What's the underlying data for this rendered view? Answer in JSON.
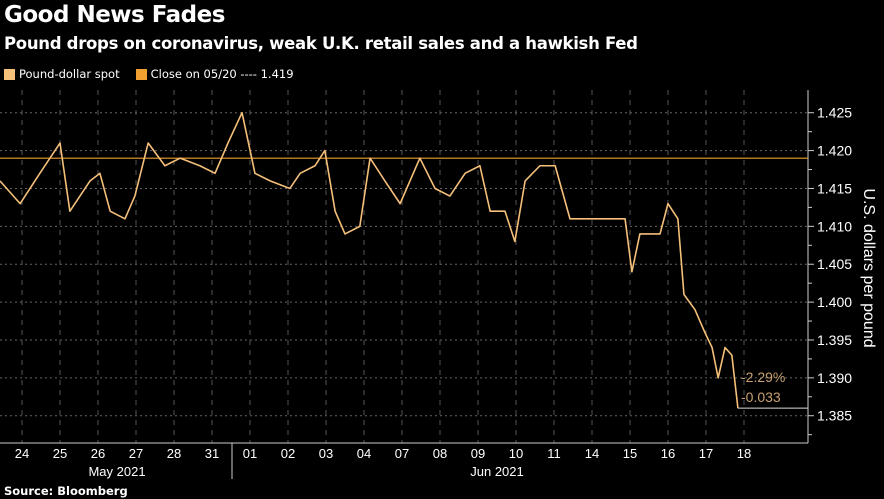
{
  "chart_data": {
    "type": "line",
    "title": "Good News Fades",
    "subtitle": "Pound drops on coronavirus, weak U.K. retail sales and a hawkish Fed",
    "legend": [
      {
        "label": "Pound-dollar spot",
        "color": "#f5c07a"
      },
      {
        "label": "Close on 05/20 ---- 1.419",
        "color": "#f0a030"
      }
    ],
    "ylabel": "U.S. dollars per pound",
    "yticks": [
      "1.425",
      "1.420",
      "1.415",
      "1.410",
      "1.405",
      "1.400",
      "1.395",
      "1.390",
      "1.385"
    ],
    "ylim": [
      1.3814,
      1.428
    ],
    "categories": [
      "24",
      "25",
      "26",
      "27",
      "28",
      "31",
      "01",
      "02",
      "03",
      "04",
      "07",
      "08",
      "09",
      "10",
      "11",
      "14",
      "15",
      "16",
      "17",
      "18"
    ],
    "months": [
      {
        "label": "May 2021",
        "center": 2.5
      },
      {
        "label": "Jun 2021",
        "center": 12.5
      }
    ],
    "reference_value": 1.419,
    "last_value": 1.386,
    "annotations": [
      "-2.29%",
      "-0.033"
    ],
    "series": [
      {
        "name": "Pound-dollar spot",
        "points": [
          [
            -0.58,
            1.416
          ],
          [
            -0.05,
            1.413
          ],
          [
            0.47,
            1.417
          ],
          [
            1.0,
            1.421
          ],
          [
            1.26,
            1.412
          ],
          [
            1.79,
            1.416
          ],
          [
            2.05,
            1.417
          ],
          [
            2.32,
            1.412
          ],
          [
            2.71,
            1.411
          ],
          [
            2.97,
            1.414
          ],
          [
            3.32,
            1.421
          ],
          [
            3.76,
            1.418
          ],
          [
            4.16,
            1.419
          ],
          [
            4.68,
            1.418
          ],
          [
            5.08,
            1.417
          ],
          [
            5.42,
            1.421
          ],
          [
            5.79,
            1.425
          ],
          [
            6.13,
            1.417
          ],
          [
            6.53,
            1.416
          ],
          [
            7.05,
            1.415
          ],
          [
            7.32,
            1.417
          ],
          [
            7.71,
            1.418
          ],
          [
            7.97,
            1.42
          ],
          [
            8.24,
            1.412
          ],
          [
            8.5,
            1.409
          ],
          [
            8.89,
            1.41
          ],
          [
            9.16,
            1.419
          ],
          [
            9.55,
            1.416
          ],
          [
            9.95,
            1.413
          ],
          [
            10.47,
            1.419
          ],
          [
            10.87,
            1.415
          ],
          [
            11.26,
            1.414
          ],
          [
            11.66,
            1.417
          ],
          [
            12.05,
            1.418
          ],
          [
            12.32,
            1.412
          ],
          [
            12.71,
            1.412
          ],
          [
            12.97,
            1.408
          ],
          [
            13.24,
            1.416
          ],
          [
            13.63,
            1.418
          ],
          [
            14.03,
            1.418
          ],
          [
            14.42,
            1.411
          ],
          [
            14.95,
            1.411
          ],
          [
            15.47,
            1.411
          ],
          [
            15.87,
            1.411
          ],
          [
            16.05,
            1.404
          ],
          [
            16.26,
            1.409
          ],
          [
            16.79,
            1.409
          ],
          [
            17.0,
            1.413
          ],
          [
            17.26,
            1.411
          ],
          [
            17.42,
            1.401
          ],
          [
            17.71,
            1.399
          ],
          [
            17.97,
            1.396
          ],
          [
            18.16,
            1.394
          ],
          [
            18.32,
            1.39
          ],
          [
            18.5,
            1.394
          ],
          [
            18.68,
            1.393
          ],
          [
            18.84,
            1.386
          ]
        ]
      }
    ]
  },
  "source": "Source: Bloomberg"
}
